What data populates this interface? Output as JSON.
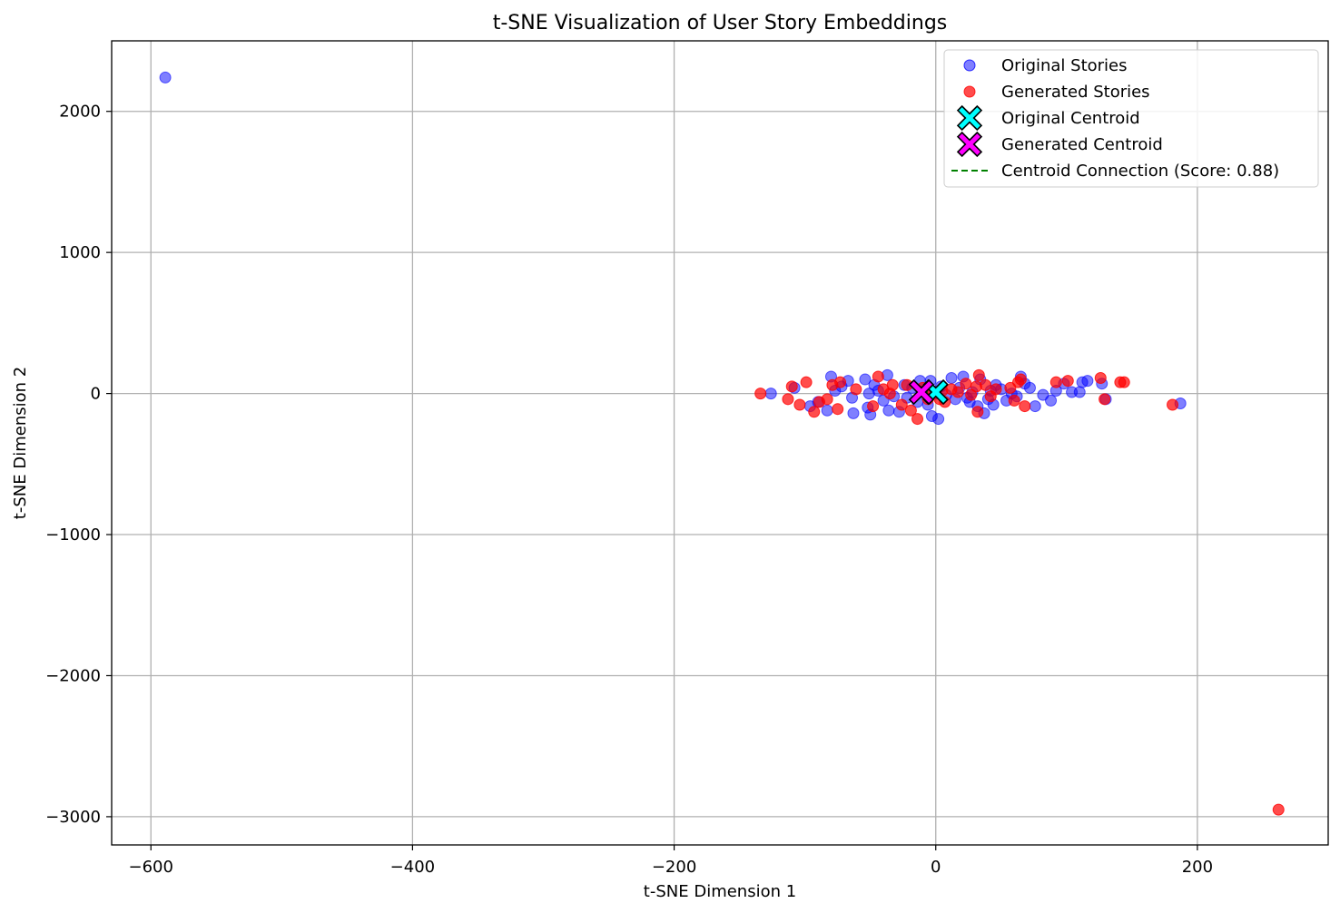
{
  "chart_data": {
    "type": "scatter",
    "title": "t-SNE Visualization of User Story Embeddings",
    "xlabel": "t-SNE Dimension 1",
    "ylabel": "t-SNE Dimension 2",
    "xlim": [
      -630,
      300
    ],
    "ylim": [
      -3200,
      2500
    ],
    "xticks": [
      -600,
      -400,
      -200,
      0,
      200
    ],
    "xtick_labels": [
      "−600",
      "−400",
      "−200",
      "0",
      "200"
    ],
    "yticks": [
      -3000,
      -2000,
      -1000,
      0,
      1000,
      2000
    ],
    "ytick_labels": [
      "−3000",
      "−2000",
      "−1000",
      "0",
      "1000",
      "2000"
    ],
    "grid": true,
    "legend_position": "top-right",
    "colors": {
      "original": "#0000ff",
      "generated": "#ff0000",
      "original_centroid": "#00ffff",
      "generated_centroid": "#ff00ff",
      "connection": "#008000"
    },
    "series": [
      {
        "name": "Original Stories",
        "marker": "circle",
        "points": [
          [
            -589,
            2240
          ],
          [
            187,
            -70
          ],
          [
            -126,
            0
          ],
          [
            -108,
            40
          ],
          [
            -96,
            -90
          ],
          [
            -83,
            -120
          ],
          [
            -80,
            120
          ],
          [
            -77,
            20
          ],
          [
            -67,
            90
          ],
          [
            -64,
            -30
          ],
          [
            -63,
            -140
          ],
          [
            -54,
            100
          ],
          [
            -52,
            -100
          ],
          [
            -51,
            0
          ],
          [
            -50,
            -150
          ],
          [
            -47,
            60
          ],
          [
            -40,
            -50
          ],
          [
            -37,
            130
          ],
          [
            -36,
            -120
          ],
          [
            -32,
            -20
          ],
          [
            -28,
            -130
          ],
          [
            -24,
            60
          ],
          [
            -22,
            -30
          ],
          [
            -18,
            40
          ],
          [
            -14,
            -60
          ],
          [
            -12,
            90
          ],
          [
            -8,
            20
          ],
          [
            -6,
            -80
          ],
          [
            -4,
            90
          ],
          [
            -3,
            -160
          ],
          [
            0,
            0
          ],
          [
            2,
            -180
          ],
          [
            4,
            50
          ],
          [
            8,
            -10
          ],
          [
            12,
            110
          ],
          [
            15,
            -40
          ],
          [
            18,
            40
          ],
          [
            21,
            120
          ],
          [
            24,
            -30
          ],
          [
            28,
            10
          ],
          [
            32,
            -90
          ],
          [
            34,
            100
          ],
          [
            37,
            -140
          ],
          [
            40,
            -40
          ],
          [
            44,
            -80
          ],
          [
            46,
            60
          ],
          [
            50,
            30
          ],
          [
            54,
            -50
          ],
          [
            58,
            0
          ],
          [
            62,
            -20
          ],
          [
            65,
            120
          ],
          [
            68,
            70
          ],
          [
            72,
            40
          ],
          [
            76,
            -90
          ],
          [
            82,
            -10
          ],
          [
            88,
            -50
          ],
          [
            92,
            20
          ],
          [
            98,
            70
          ],
          [
            104,
            10
          ],
          [
            110,
            10
          ],
          [
            112,
            80
          ],
          [
            116,
            90
          ],
          [
            127,
            70
          ],
          [
            130,
            -40
          ],
          [
            -90,
            -60
          ],
          [
            -72,
            50
          ],
          [
            -44,
            20
          ],
          [
            26,
            -60
          ],
          [
            42,
            20
          ]
        ]
      },
      {
        "name": "Generated Stories",
        "marker": "circle",
        "points": [
          [
            -134,
            0
          ],
          [
            -110,
            50
          ],
          [
            -104,
            -80
          ],
          [
            -99,
            80
          ],
          [
            -93,
            -130
          ],
          [
            -89,
            -60
          ],
          [
            -83,
            -40
          ],
          [
            -75,
            -110
          ],
          [
            -73,
            80
          ],
          [
            -61,
            30
          ],
          [
            -48,
            -90
          ],
          [
            -44,
            120
          ],
          [
            -40,
            30
          ],
          [
            -33,
            60
          ],
          [
            -26,
            -80
          ],
          [
            -22,
            60
          ],
          [
            -19,
            -120
          ],
          [
            -14,
            -180
          ],
          [
            -10,
            40
          ],
          [
            -6,
            -40
          ],
          [
            -2,
            10
          ],
          [
            3,
            -40
          ],
          [
            7,
            -60
          ],
          [
            12,
            30
          ],
          [
            17,
            10
          ],
          [
            23,
            70
          ],
          [
            27,
            -10
          ],
          [
            31,
            50
          ],
          [
            32,
            -130
          ],
          [
            33,
            130
          ],
          [
            38,
            60
          ],
          [
            42,
            -20
          ],
          [
            46,
            30
          ],
          [
            57,
            40
          ],
          [
            60,
            -50
          ],
          [
            63,
            80
          ],
          [
            65,
            100
          ],
          [
            68,
            -90
          ],
          [
            92,
            80
          ],
          [
            101,
            90
          ],
          [
            126,
            110
          ],
          [
            129,
            -40
          ],
          [
            141,
            80
          ],
          [
            144,
            80
          ],
          [
            181,
            -80
          ],
          [
            262,
            -2950
          ],
          [
            -113,
            -40
          ],
          [
            -79,
            60
          ],
          [
            -35,
            0
          ],
          [
            5,
            20
          ]
        ]
      },
      {
        "name": "Original Centroid",
        "marker": "X",
        "points": [
          [
            0,
            10
          ]
        ]
      },
      {
        "name": "Generated Centroid",
        "marker": "X",
        "points": [
          [
            -11,
            10
          ]
        ]
      }
    ],
    "centroid_connection": {
      "name": "Centroid Connection (Score: 0.88)",
      "line_style": "dashed",
      "from": [
        -11,
        10
      ],
      "to": [
        0,
        10
      ]
    },
    "legend": [
      {
        "label": "Original Stories",
        "marker": "circle",
        "color": "#0000ff"
      },
      {
        "label": "Generated Stories",
        "marker": "circle",
        "color": "#ff0000"
      },
      {
        "label": "Original Centroid",
        "marker": "X",
        "color": "#00ffff"
      },
      {
        "label": "Generated Centroid",
        "marker": "X",
        "color": "#ff00ff"
      },
      {
        "label": "Centroid Connection (Score: 0.88)",
        "marker": "dashed-line",
        "color": "#008000"
      }
    ]
  }
}
